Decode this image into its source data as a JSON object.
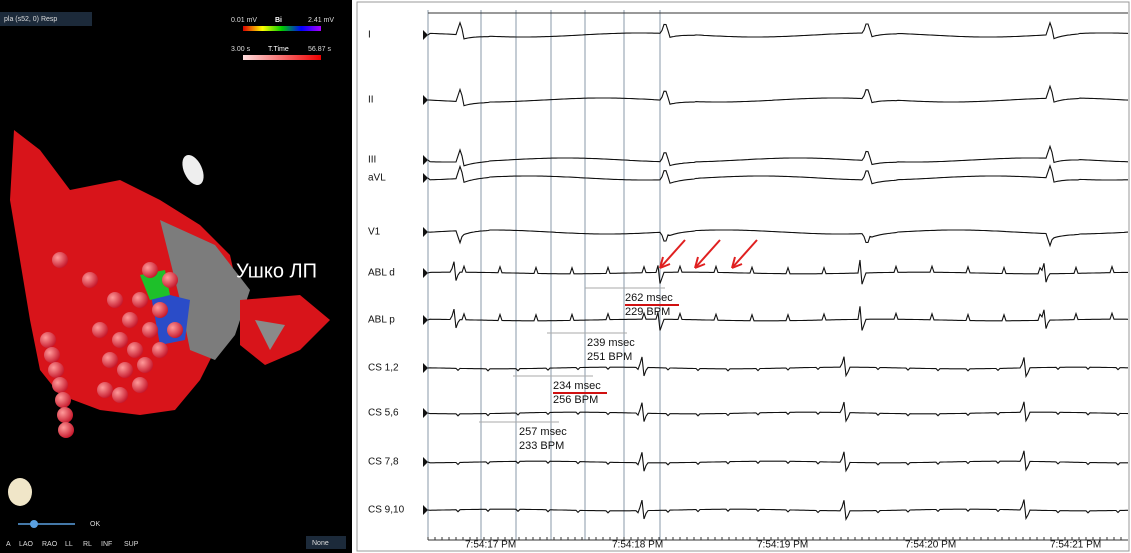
{
  "map_panel": {
    "header": "pla (s52, 0) Resp",
    "voltage_scale": {
      "min": "0.01 mV",
      "mode": "Bi",
      "max": "2.41 mV"
    },
    "time_scale": {
      "min": "3.00 s",
      "mode": "T.Time",
      "max": "56.87 s"
    },
    "annotation": "Ушко ЛП",
    "ok_button": "OK",
    "views": [
      "A",
      "LAO",
      "RAO",
      "LL",
      "RL",
      "INF",
      "SUP"
    ],
    "dropdown": "None"
  },
  "ecg_panel": {
    "leads": [
      "I",
      "II",
      "III",
      "aVL",
      "V1",
      "ABL d",
      "ABL p",
      "CS 1,2",
      "CS 5,6",
      "CS 7,8",
      "CS 9,10"
    ],
    "measurements": [
      {
        "interval": "262 msec",
        "rate": "229 BPM"
      },
      {
        "interval": "239 msec",
        "rate": "251 BPM"
      },
      {
        "interval": "234 msec",
        "rate": "256 BPM"
      },
      {
        "interval": "257 msec",
        "rate": "233 BPM"
      }
    ],
    "times": [
      "7:54:17 PM",
      "7:54:18 PM",
      "7:54:19 PM",
      "7:54:20 PM",
      "7:54:21 PM"
    ]
  }
}
